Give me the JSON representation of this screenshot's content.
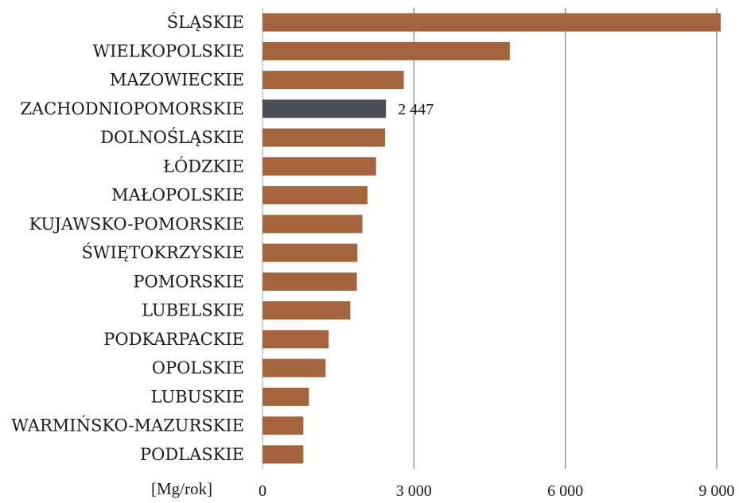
{
  "chart_data": {
    "type": "bar",
    "orientation": "horizontal",
    "categories": [
      "ŚLĄSKIE",
      "WIELKOPOLSKIE",
      "MAZOWIECKIE",
      "ZACHODNIOPOMORSKIE",
      "DOLNOŚLĄSKIE",
      "ŁÓDZKIE",
      "MAŁOPOLSKIE",
      "KUJAWSKO-POMORSKIE",
      "ŚWIĘTOKRZYSKIE",
      "POMORSKIE",
      "LUBELSKIE",
      "PODKARPACKIE",
      "OPOLSKIE",
      "LUBUSKIE",
      "WARMIŃSKO-MAZURSKIE",
      "PODLASKIE"
    ],
    "values": [
      9080,
      4900,
      2800,
      2447,
      2430,
      2250,
      2080,
      1980,
      1880,
      1870,
      1740,
      1310,
      1250,
      920,
      810,
      810
    ],
    "highlight_index": 3,
    "data_labels": [
      {
        "index": 3,
        "text": "2 447"
      }
    ],
    "xlim": [
      0,
      9500
    ],
    "x_ticks": [
      0,
      3000,
      6000,
      9000
    ],
    "x_tick_labels": [
      "0",
      "3 000",
      "6 000",
      "9 000"
    ],
    "xlabel": "[Mg/rok]",
    "grid": "vertical",
    "colors": {
      "bar": "#a4643e",
      "highlight": "#4d4f57",
      "grid": "#7f7f7f"
    }
  }
}
